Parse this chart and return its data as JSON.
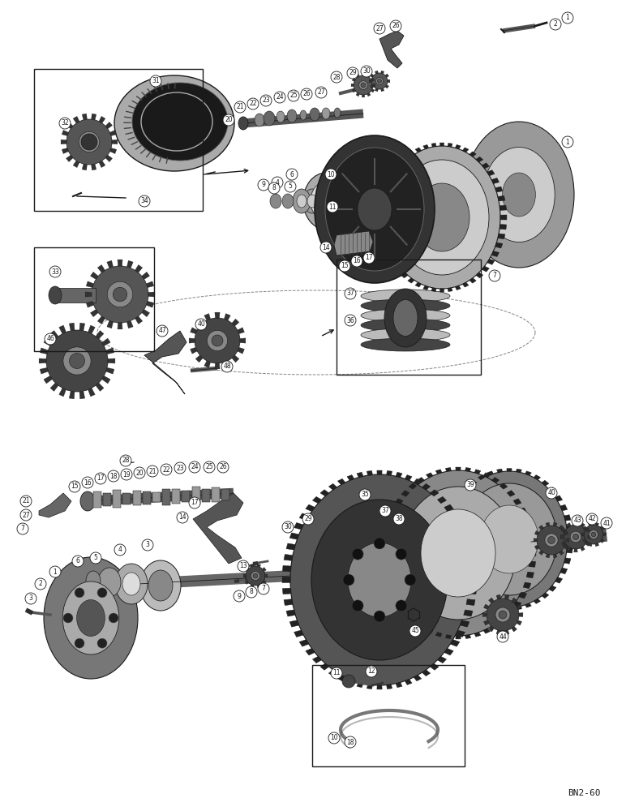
{
  "background_color": "#ffffff",
  "fig_width": 7.72,
  "fig_height": 10.0,
  "dpi": 100,
  "watermark_text": "BN2-60",
  "watermark_fontsize": 8,
  "line_color": "#1a1a1a"
}
